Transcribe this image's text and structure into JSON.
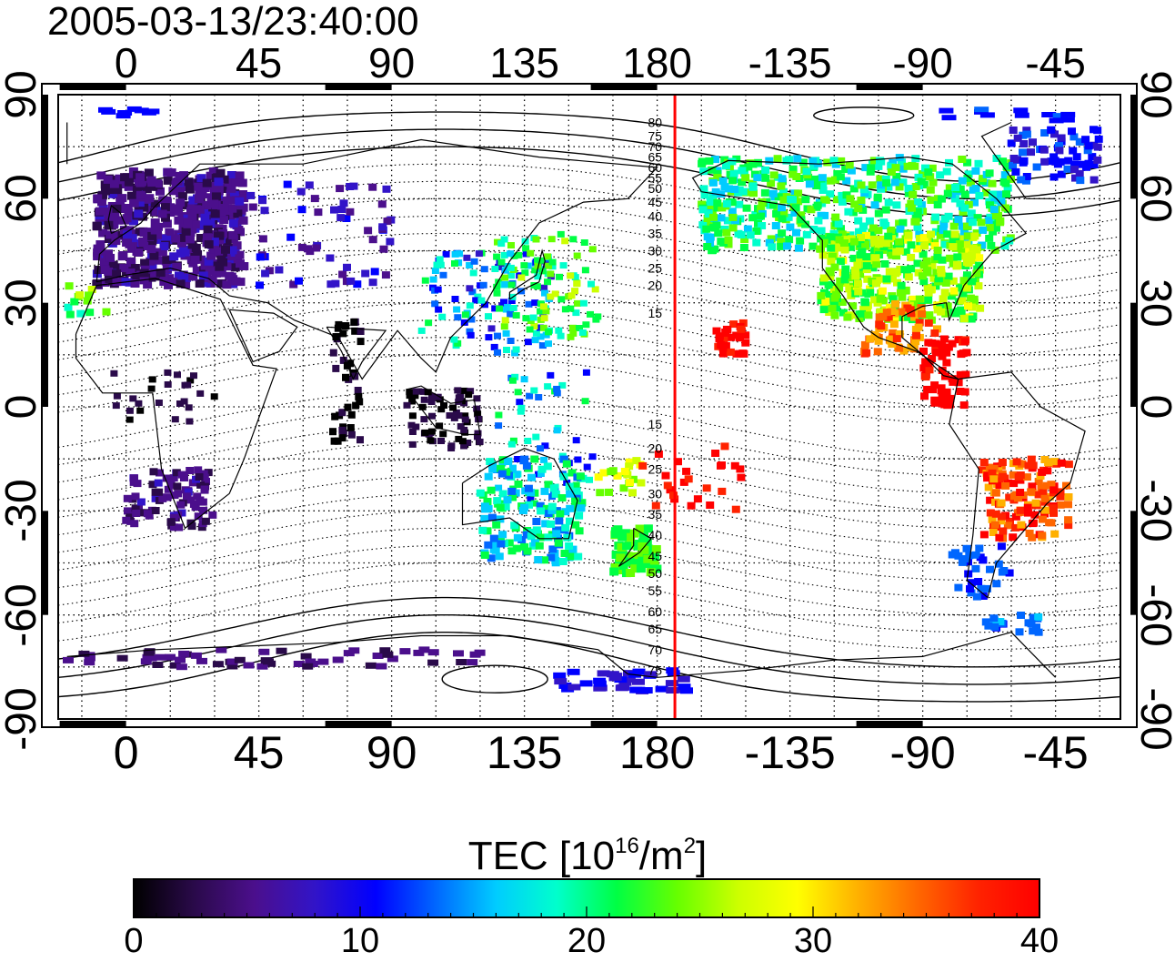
{
  "header": {
    "timestamp": "2005-03-13/23:40:00"
  },
  "map": {
    "top_longitude_labels": [
      "0",
      "45",
      "90",
      "135",
      "180",
      "-135",
      "-90",
      "-45"
    ],
    "bottom_longitude_labels": [
      "0",
      "45",
      "90",
      "135",
      "180",
      "-135",
      "-90",
      "-45"
    ],
    "left_latitude_labels": [
      "90",
      "60",
      "30",
      "0",
      "-30",
      "-60",
      "-90"
    ],
    "right_latitude_labels": [
      "90",
      "60",
      "30",
      "0",
      "-30",
      "-60",
      "-90"
    ],
    "contour_labels_north": [
      "80",
      "75",
      "70",
      "65",
      "60",
      "55",
      "50",
      "45",
      "40",
      "35",
      "30",
      "25",
      "20",
      "15"
    ],
    "contour_labels_south": [
      "15",
      "20",
      "25",
      "30",
      "35",
      "40",
      "45",
      "50",
      "55",
      "60",
      "65",
      "70",
      "75"
    ],
    "marker_line_color": "#ff0000",
    "marker_line_longitude": -174
  },
  "colorbar": {
    "title_main": "TEC  [10",
    "title_exp1": "16",
    "title_mid": "/m",
    "title_exp2": "2",
    "title_end": "]",
    "tick_labels": [
      "0",
      "10",
      "20",
      "30",
      "40"
    ],
    "min": 0,
    "max": 40,
    "colors": [
      "#000000",
      "#2a0a4a",
      "#4b0f8c",
      "#3214c8",
      "#0000ff",
      "#0066ff",
      "#00ccff",
      "#00ffcc",
      "#00ff44",
      "#66ff00",
      "#ccff00",
      "#ffff00",
      "#ffb000",
      "#ff6600",
      "#ff2200",
      "#ff0000"
    ]
  }
}
